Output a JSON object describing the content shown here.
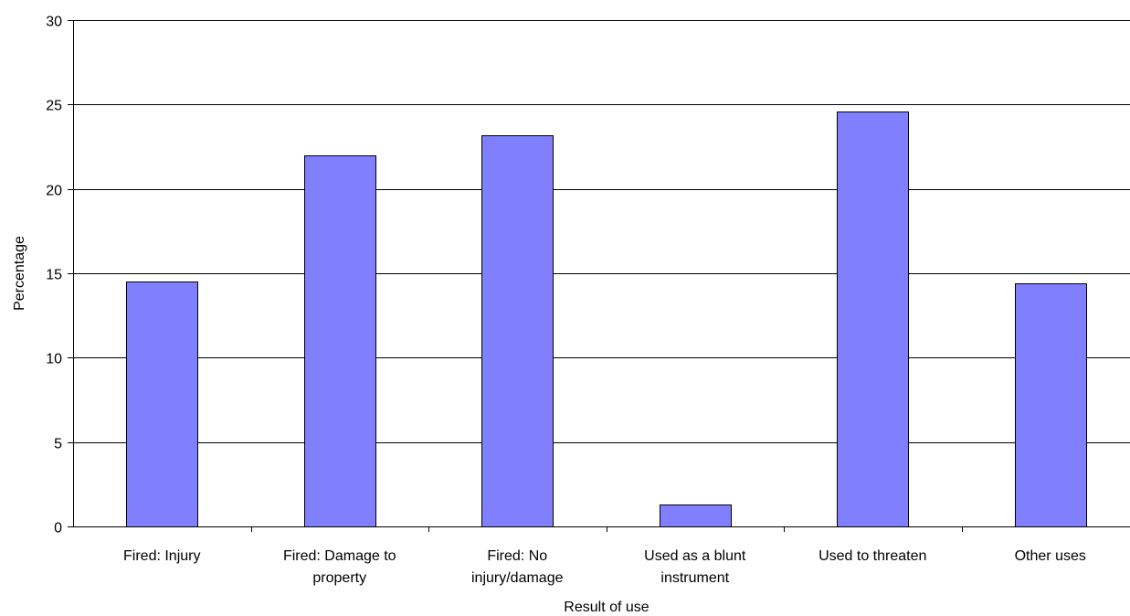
{
  "chart_data": {
    "type": "bar",
    "title": "",
    "xlabel": "Result of use",
    "ylabel": "Percentage",
    "ylim": [
      0,
      30
    ],
    "yticks": [
      0,
      5,
      10,
      15,
      20,
      25,
      30
    ],
    "grid": true,
    "legend": "none",
    "categories": [
      [
        "Fired: Injury"
      ],
      [
        "Fired: Damage to",
        "property"
      ],
      [
        "Fired: No",
        "injury/damage"
      ],
      [
        "Used as a blunt",
        "instrument"
      ],
      [
        "Used to threaten"
      ],
      [
        "Other uses"
      ]
    ],
    "values": [
      14.5,
      22.0,
      23.2,
      1.3,
      24.6,
      14.4
    ],
    "colors": {
      "bar_fill": "#8080ff",
      "bar_stroke": "#000000",
      "grid": "#000000"
    }
  }
}
